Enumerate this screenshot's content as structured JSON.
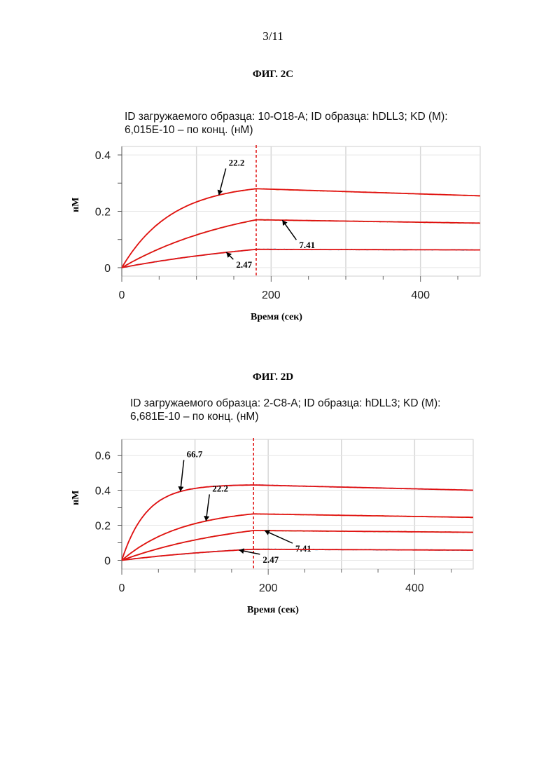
{
  "page": {
    "number": "3/11"
  },
  "chart_data": [
    {
      "figure_label": "ФИГ. 2C",
      "header_line1": "ID загружаемого образца: 10-O18-A; ID образца: hDLL3; KD (M):",
      "header_line2": "6,015E-10 – по конц. (нМ)",
      "type": "line",
      "xlabel": "Время (сек)",
      "ylabel": "нМ",
      "xlim": [
        0,
        480
      ],
      "ylim": [
        -0.03,
        0.43
      ],
      "xticks": [
        0,
        200,
        400
      ],
      "xtick_labels": [
        "0",
        "200",
        "400"
      ],
      "yticks": [
        0,
        0.2,
        0.4
      ],
      "ytick_labels": [
        "0",
        "0.2",
        "0.4"
      ],
      "grid": true,
      "association_end": 180,
      "series": [
        {
          "label": "22.2",
          "color": "#e8a83c",
          "fit_color": "#e01010",
          "peak": 0.28,
          "k_on": 0.015,
          "end": 0.255,
          "label_at": 130,
          "label_dy": -38,
          "label_dx": 10
        },
        {
          "label": "7.41",
          "color": "#86c43c",
          "fit_color": "#e01010",
          "peak": 0.17,
          "k_on": 0.006,
          "end": 0.158,
          "label_at": 215,
          "label_dy": 28,
          "label_dx": 20
        },
        {
          "label": "2.47",
          "color": "#5aaad8",
          "fit_color": "#e01010",
          "peak": 0.065,
          "k_on": 0.004,
          "end": 0.063,
          "label_at": 140,
          "label_dy": 10,
          "label_dx": 10
        }
      ]
    },
    {
      "figure_label": "ФИГ. 2D",
      "header_line1": "ID загружаемого образца: 2-C8-A; ID образца: hDLL3; KD (M):",
      "header_line2": "6,681E-10 – по конц. (нМ)",
      "type": "line",
      "xlabel": "Время (сек)",
      "ylabel": "нМ",
      "xlim": [
        0,
        480
      ],
      "ylim": [
        -0.05,
        0.69
      ],
      "xticks": [
        0,
        200,
        400
      ],
      "xtick_labels": [
        "0",
        "200",
        "400"
      ],
      "yticks": [
        0,
        0.2,
        0.4,
        0.6
      ],
      "ytick_labels": [
        "0",
        "0.2",
        "0.4",
        "0.6"
      ],
      "grid": true,
      "association_end": 180,
      "series": [
        {
          "label": "66.7",
          "color": "#9b7fc8",
          "fit_color": "#e01010",
          "peak": 0.43,
          "k_on": 0.03,
          "end": 0.4,
          "label_at": 80,
          "label_dy": -45,
          "label_dx": 5
        },
        {
          "label": "22.2",
          "color": "#e8a83c",
          "fit_color": "#e01010",
          "peak": 0.265,
          "k_on": 0.012,
          "end": 0.245,
          "label_at": 115,
          "label_dy": -38,
          "label_dx": 5
        },
        {
          "label": "7.41",
          "color": "#86c43c",
          "fit_color": "#e01010",
          "peak": 0.17,
          "k_on": 0.006,
          "end": 0.16,
          "label_at": 195,
          "label_dy": 18,
          "label_dx": 40
        },
        {
          "label": "2.47",
          "color": "#5aaad8",
          "fit_color": "#e01010",
          "peak": 0.063,
          "k_on": 0.005,
          "end": 0.058,
          "label_at": 160,
          "label_dy": 6,
          "label_dx": 30
        }
      ]
    }
  ]
}
